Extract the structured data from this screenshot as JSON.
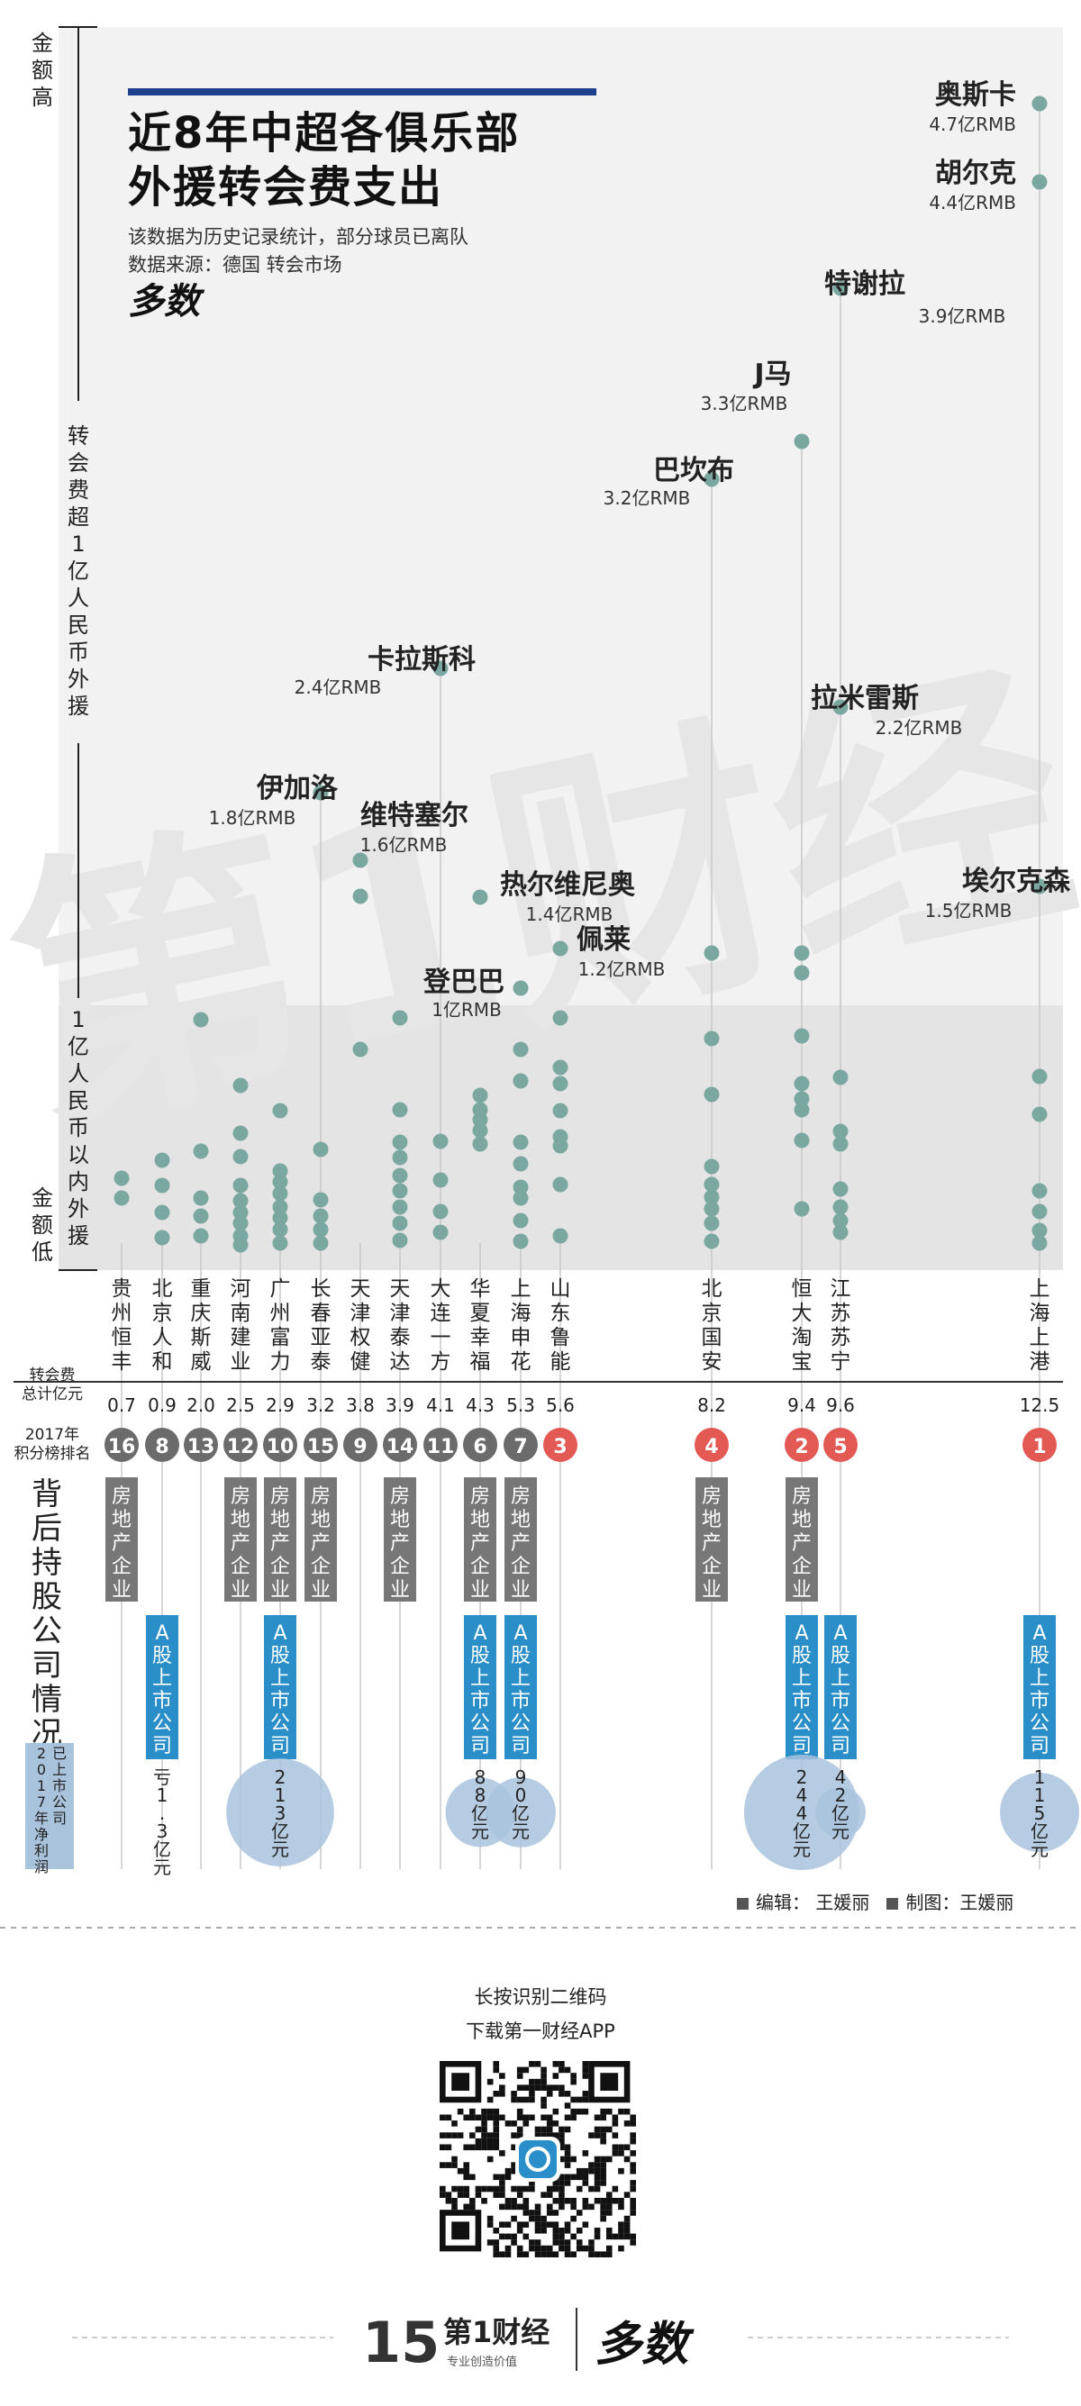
{
  "title": {
    "line1": "近8年中超各俱乐部",
    "line2": "外援转会费支出",
    "note": "该数据为历史记录统计，部分球员已离队",
    "source": "数据来源：德国 转会市场"
  },
  "brand": {
    "logo_text": "多数",
    "app_logo_text": "第1财经",
    "slogan": "专业创造价值",
    "num_15": "15"
  },
  "yaxis": {
    "top": "金额高",
    "mid": "转会费超1亿人民币外援",
    "low": "1亿人民币以内外援",
    "bottom": "金额低"
  },
  "row_labels": {
    "total": "转会费\n总计亿元",
    "rank": "2017年\n积分榜排名",
    "ownership": "背后持股公司情况",
    "profit": "已上市公司\n2017年净利润"
  },
  "badge_labels": {
    "real_estate": "房地产企业",
    "a_share": "A股上市公司"
  },
  "colors": {
    "dot": "#7aa7a0",
    "rank_dark": "#6b6b6b",
    "rank_red": "#e35a55",
    "a_share": "#2a8fc9",
    "real_estate": "#777777",
    "bubble": "#a9c3dd",
    "bg_top": "#f2f2f2",
    "bg_bottom": "#e4e4e4",
    "title_bar": "#1d3f8c"
  },
  "chart_data": {
    "type": "scatter",
    "clubs": [
      {
        "name": "贵州恒丰",
        "total": "0.7",
        "rank": "16",
        "top3": false,
        "real_estate": true,
        "a_share": false,
        "profit": ""
      },
      {
        "name": "北京人和",
        "total": "0.9",
        "rank": "8",
        "top3": false,
        "real_estate": false,
        "a_share": true,
        "profit": "亏1.3亿元"
      },
      {
        "name": "重庆斯威",
        "total": "2.0",
        "rank": "13",
        "top3": false,
        "real_estate": false,
        "a_share": false,
        "profit": ""
      },
      {
        "name": "河南建业",
        "total": "2.5",
        "rank": "12",
        "top3": false,
        "real_estate": true,
        "a_share": false,
        "profit": ""
      },
      {
        "name": "广州富力",
        "total": "2.9",
        "rank": "10",
        "top3": false,
        "real_estate": true,
        "a_share": true,
        "profit": "213亿元"
      },
      {
        "name": "长春亚泰",
        "total": "3.2",
        "rank": "15",
        "top3": false,
        "real_estate": true,
        "a_share": false,
        "profit": ""
      },
      {
        "name": "天津权健",
        "total": "3.8",
        "rank": "9",
        "top3": false,
        "real_estate": false,
        "a_share": false,
        "profit": ""
      },
      {
        "name": "天津泰达",
        "total": "3.9",
        "rank": "14",
        "top3": false,
        "real_estate": true,
        "a_share": false,
        "profit": ""
      },
      {
        "name": "大连一方",
        "total": "4.1",
        "rank": "11",
        "top3": false,
        "real_estate": false,
        "a_share": false,
        "profit": ""
      },
      {
        "name": "华夏幸福",
        "total": "4.3",
        "rank": "6",
        "top3": false,
        "real_estate": true,
        "a_share": true,
        "profit": "88亿元"
      },
      {
        "name": "上海申花",
        "total": "5.3",
        "rank": "7",
        "top3": false,
        "real_estate": true,
        "a_share": true,
        "profit": "90亿元"
      },
      {
        "name": "山东鲁能",
        "total": "5.6",
        "rank": "3",
        "top3": true,
        "real_estate": false,
        "a_share": false,
        "profit": ""
      },
      {
        "name": "北京国安",
        "total": "8.2",
        "rank": "4",
        "top3": false,
        "real_estate": true,
        "a_share": false,
        "profit": ""
      },
      {
        "name": "恒大淘宝",
        "total": "9.4",
        "rank": "2",
        "top3": true,
        "real_estate": true,
        "a_share": true,
        "profit": "244亿元"
      },
      {
        "name": "江苏苏宁",
        "total": "9.6",
        "rank": "5",
        "top3": false,
        "real_estate": false,
        "a_share": true,
        "profit": "42亿元"
      },
      {
        "name": "上海上港",
        "total": "12.5",
        "rank": "1",
        "top3": true,
        "real_estate": false,
        "a_share": true,
        "profit": "115亿元"
      }
    ],
    "stars": [
      {
        "club": 15,
        "name": "奥斯卡",
        "fee": "4.7亿RMB"
      },
      {
        "club": 15,
        "name": "胡尔克",
        "fee": "4.4亿RMB"
      },
      {
        "club": 14,
        "name": "特谢拉",
        "fee": "3.9亿RMB"
      },
      {
        "club": 13,
        "name": "J马",
        "fee": "3.3亿RMB"
      },
      {
        "club": 12,
        "name": "巴坎布",
        "fee": "3.2亿RMB"
      },
      {
        "club": 8,
        "name": "卡拉斯科",
        "fee": "2.4亿RMB"
      },
      {
        "club": 14,
        "name": "拉米雷斯",
        "fee": "2.2亿RMB"
      },
      {
        "club": 5,
        "name": "伊加洛",
        "fee": "1.8亿RMB"
      },
      {
        "club": 6,
        "name": "维特塞尔",
        "fee": "1.6亿RMB"
      },
      {
        "club": 15,
        "name": "埃尔克森",
        "fee": "1.5亿RMB"
      },
      {
        "club": 9,
        "name": "热尔维尼奥",
        "fee": "1.4亿RMB"
      },
      {
        "club": 11,
        "name": "佩莱",
        "fee": "1.2亿RMB"
      },
      {
        "club": 10,
        "name": "登巴巴",
        "fee": "1亿RMB"
      }
    ]
  },
  "credits": {
    "editor": "编辑：  王媛丽",
    "maker": "制图：王媛丽"
  },
  "qr": {
    "line1": "长按识别二维码",
    "line2": "下载第一财经APP"
  }
}
